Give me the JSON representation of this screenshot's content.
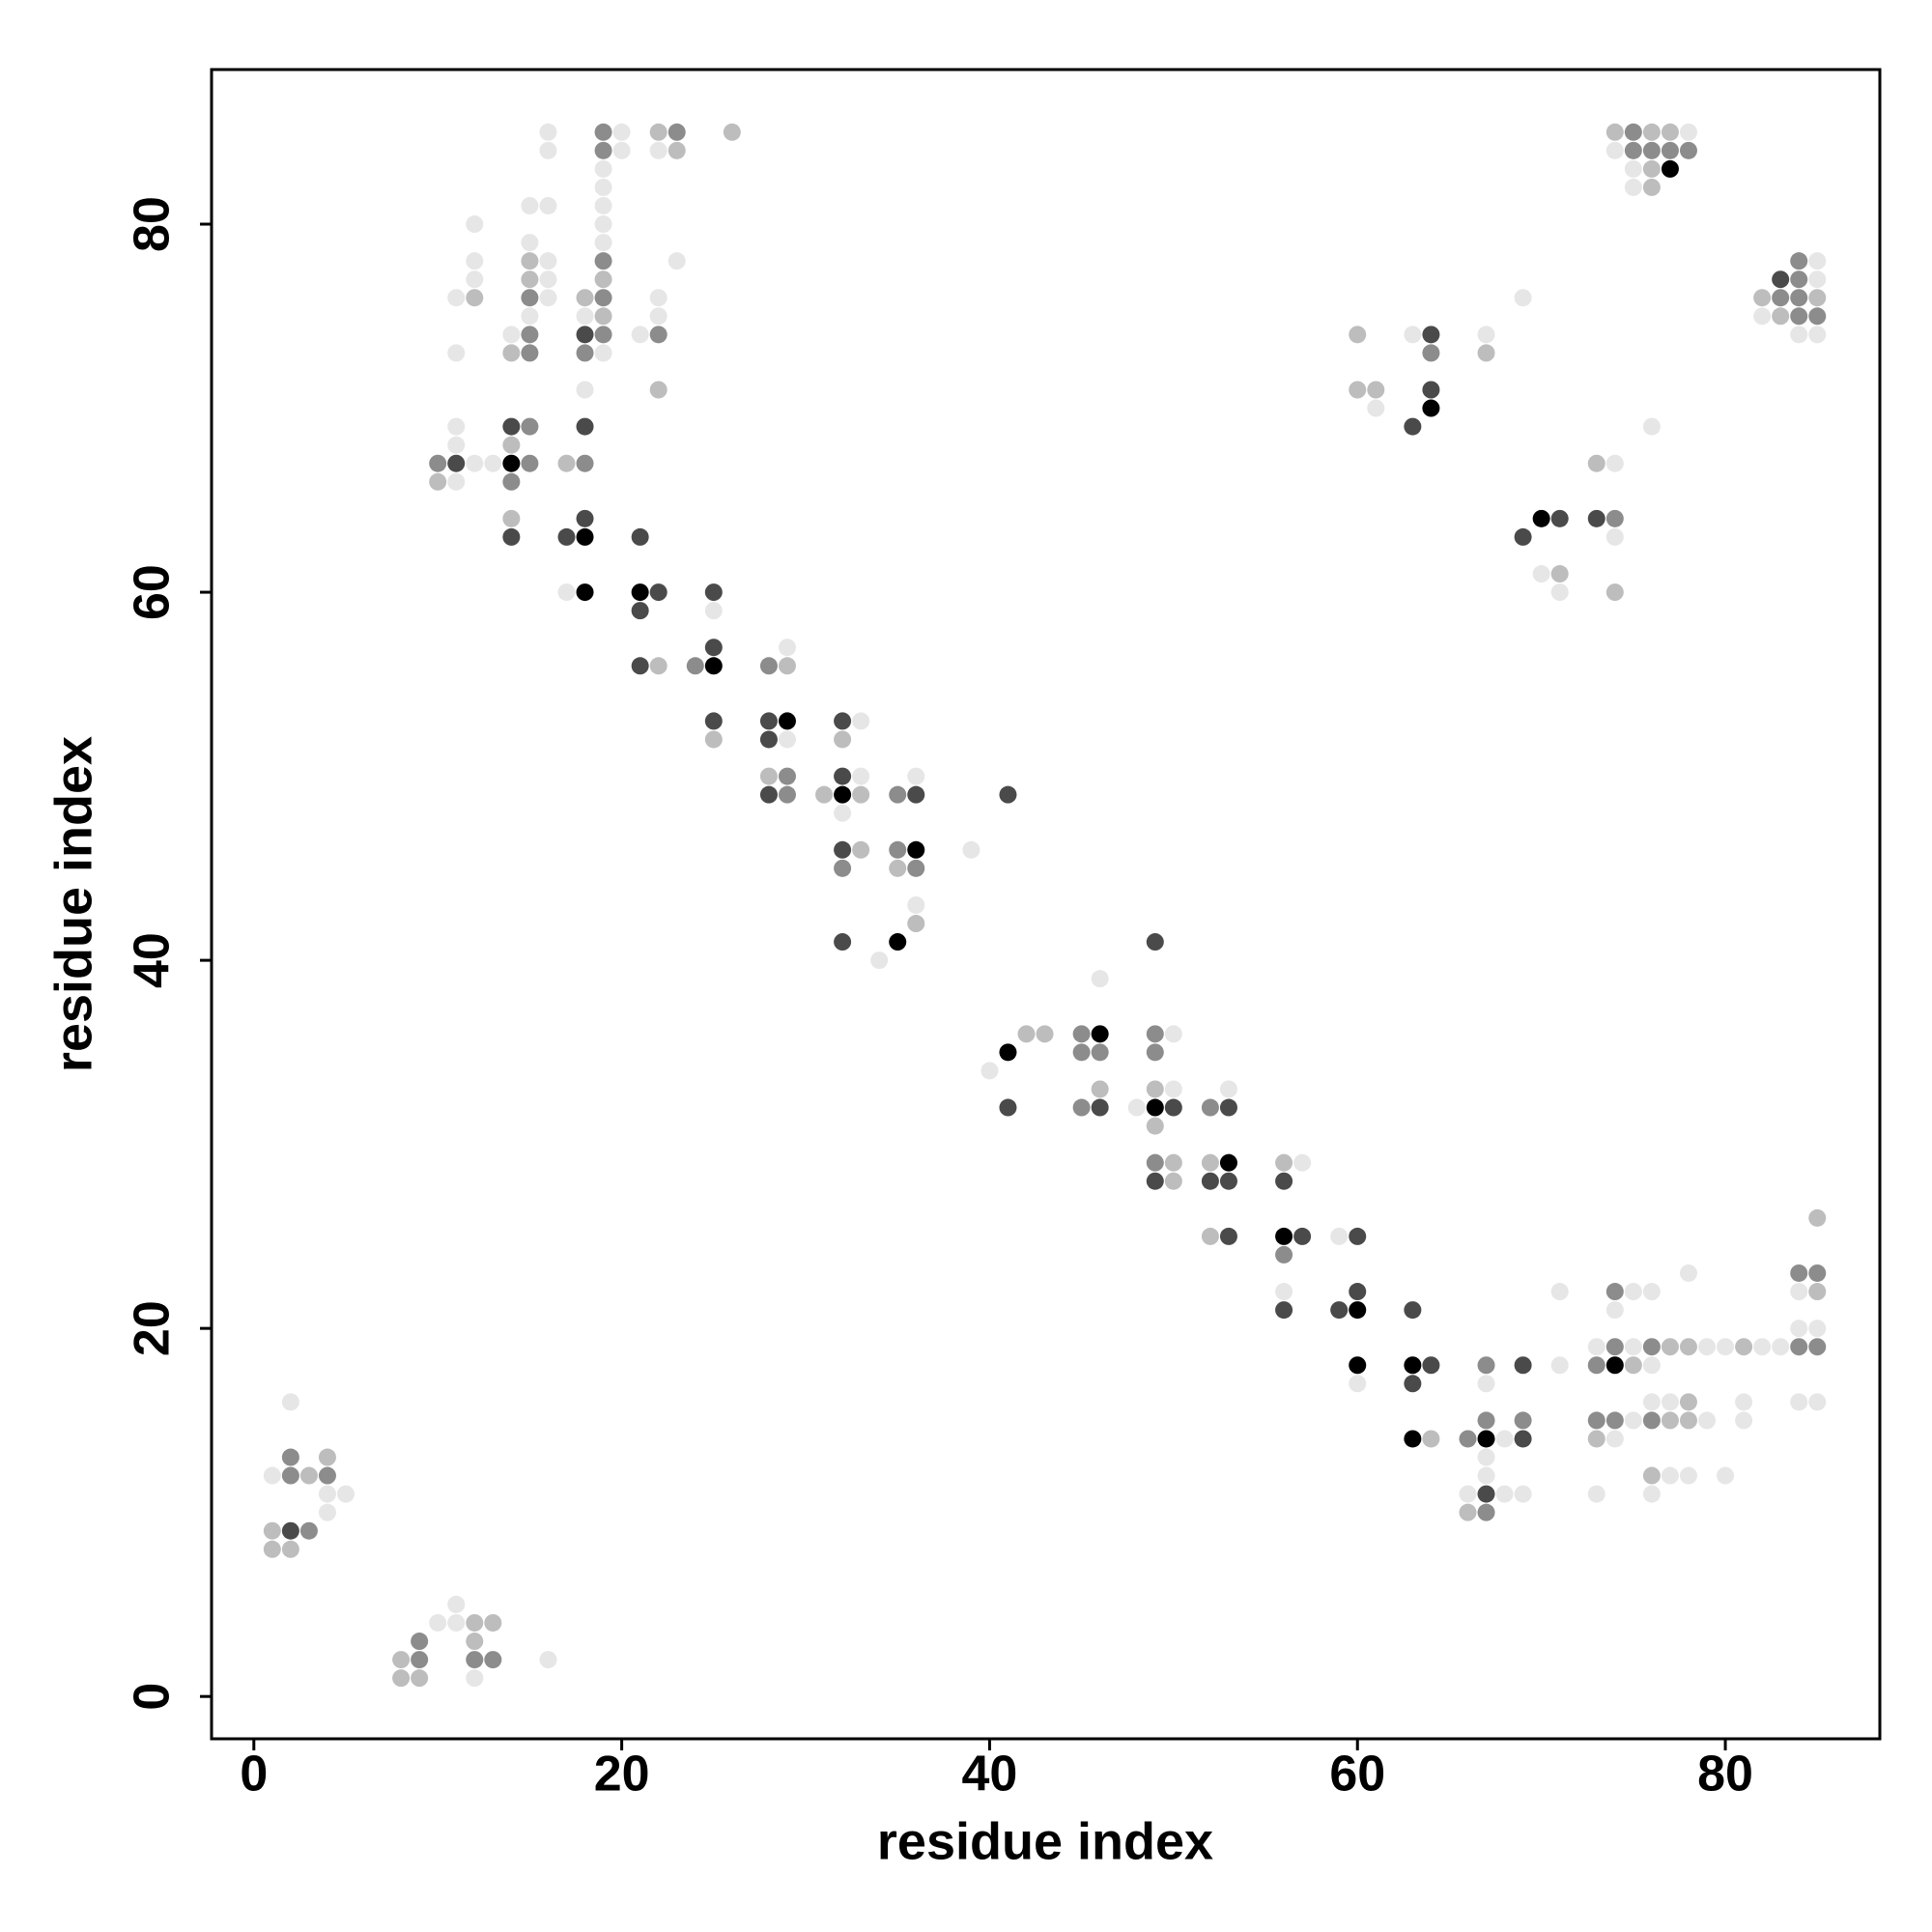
{
  "chart_data": {
    "type": "scatter",
    "xlabel": "residue index",
    "ylabel": "residue index",
    "xlim": [
      -2.3,
      88.4
    ],
    "ylim": [
      -2.3,
      88.4
    ],
    "xticks": [
      0,
      20,
      40,
      60,
      80
    ],
    "yticks": [
      0,
      20,
      40,
      60,
      80
    ],
    "grid": false,
    "series": [
      {
        "color": "#000000",
        "x": [
          14,
          18,
          18,
          21,
          25,
          29,
          32,
          36,
          35,
          46,
          41,
          49,
          53,
          56,
          60,
          60,
          63,
          74,
          63,
          67,
          77,
          64,
          70
        ],
        "y": [
          67,
          63,
          60,
          60,
          56,
          53,
          49,
          46,
          41,
          36,
          35,
          32,
          29,
          25,
          21,
          18,
          18,
          18,
          14,
          14,
          83,
          70,
          64
        ]
      },
      {
        "color": "#4a4a4a",
        "x": [
          2,
          14,
          18,
          18,
          11,
          18,
          14,
          17,
          21,
          22,
          25,
          21,
          25,
          21,
          25,
          28,
          32,
          28,
          32,
          28,
          36,
          41,
          32,
          32,
          49,
          41,
          46,
          50,
          53,
          49,
          52,
          53,
          56,
          53,
          57,
          60,
          60,
          56,
          59,
          63,
          64,
          69,
          63,
          69,
          67,
          83,
          64,
          64,
          63,
          71,
          73,
          69
        ],
        "y": [
          9,
          69,
          74,
          69,
          67,
          64,
          63,
          63,
          63,
          60,
          60,
          59,
          57,
          56,
          53,
          53,
          53,
          52,
          50,
          49,
          49,
          49,
          46,
          41,
          41,
          32,
          32,
          32,
          32,
          28,
          28,
          28,
          28,
          25,
          25,
          25,
          22,
          21,
          21,
          21,
          18,
          18,
          17,
          14,
          11,
          77,
          74,
          71,
          69,
          64,
          64,
          63
        ]
      },
      {
        "color": "#8c8c8c",
        "x": [
          2,
          2,
          4,
          3,
          9,
          9,
          12,
          13,
          19,
          23,
          19,
          19,
          15,
          19,
          15,
          19,
          22,
          15,
          18,
          15,
          10,
          15,
          18,
          14,
          24,
          28,
          29,
          29,
          35,
          35,
          32,
          36,
          45,
          49,
          45,
          46,
          49,
          45,
          52,
          49,
          56,
          74,
          84,
          85,
          74,
          76,
          84,
          85,
          67,
          73,
          67,
          69,
          73,
          74,
          76,
          66,
          67,
          75,
          75,
          76,
          77,
          78,
          84,
          84,
          83,
          84,
          84,
          85,
          64,
          74
        ],
        "y": [
          13,
          12,
          12,
          9,
          3,
          2,
          2,
          2,
          85,
          85,
          84,
          78,
          76,
          76,
          74,
          74,
          74,
          73,
          73,
          69,
          67,
          67,
          67,
          66,
          56,
          56,
          50,
          49,
          49,
          46,
          45,
          45,
          36,
          36,
          35,
          35,
          35,
          32,
          32,
          29,
          24,
          22,
          23,
          23,
          19,
          19,
          19,
          19,
          18,
          18,
          15,
          15,
          15,
          15,
          15,
          14,
          10,
          85,
          84,
          84,
          84,
          84,
          78,
          77,
          76,
          76,
          75,
          75,
          73,
          64
        ]
      },
      {
        "color": "#bdbdbd",
        "x": [
          4,
          3,
          1,
          1,
          2,
          12,
          13,
          12,
          8,
          8,
          9,
          26,
          22,
          23,
          15,
          15,
          19,
          12,
          18,
          19,
          14,
          22,
          14,
          17,
          10,
          14,
          22,
          29,
          25,
          32,
          28,
          31,
          33,
          33,
          35,
          36,
          42,
          43,
          46,
          49,
          49,
          50,
          52,
          56,
          50,
          52,
          85,
          85,
          77,
          78,
          81,
          75,
          78,
          77,
          78,
          64,
          73,
          76,
          66,
          74,
          76,
          77,
          76,
          76,
          82,
          85,
          83,
          60,
          67,
          60,
          61,
          73,
          71,
          74
        ],
        "y": [
          13,
          12,
          9,
          8,
          8,
          4,
          4,
          3,
          2,
          1,
          1,
          85,
          85,
          84,
          78,
          77,
          77,
          76,
          76,
          75,
          73,
          71,
          68,
          67,
          66,
          64,
          56,
          56,
          52,
          52,
          50,
          49,
          49,
          46,
          45,
          42,
          36,
          36,
          33,
          33,
          31,
          29,
          29,
          29,
          28,
          25,
          22,
          26,
          19,
          19,
          19,
          18,
          16,
          15,
          15,
          14,
          14,
          12,
          10,
          85,
          85,
          85,
          83,
          82,
          76,
          76,
          75,
          74,
          73,
          71,
          71,
          67,
          61,
          60
        ]
      },
      {
        "color": "#e6e6e6",
        "x": [
          2,
          1,
          4,
          5,
          4,
          11,
          10,
          11,
          16,
          12,
          16,
          20,
          16,
          20,
          22,
          19,
          19,
          19,
          19,
          19,
          15,
          16,
          12,
          15,
          12,
          16,
          23,
          12,
          16,
          11,
          16,
          22,
          15,
          18,
          22,
          14,
          21,
          11,
          19,
          18,
          11,
          11,
          12,
          13,
          11,
          17,
          25,
          29,
          33,
          29,
          33,
          36,
          32,
          39,
          36,
          34,
          46,
          50,
          40,
          50,
          53,
          48,
          57,
          59,
          56,
          71,
          75,
          76,
          84,
          78,
          74,
          84,
          85,
          73,
          75,
          79,
          80,
          82,
          83,
          71,
          76,
          60,
          67,
          76,
          77,
          81,
          84,
          85,
          75,
          79,
          81,
          68,
          74,
          67,
          67,
          77,
          78,
          80,
          66,
          68,
          69,
          73,
          76,
          78,
          74,
          75,
          75,
          85,
          85,
          69,
          82,
          63,
          67,
          84,
          85,
          61,
          76,
          74,
          74,
          70,
          71
        ],
        "y": [
          16,
          12,
          11,
          11,
          10,
          5,
          4,
          4,
          2,
          1,
          85,
          85,
          84,
          84,
          84,
          83,
          82,
          81,
          80,
          79,
          81,
          81,
          80,
          79,
          78,
          78,
          78,
          77,
          77,
          76,
          76,
          76,
          75,
          75,
          75,
          74,
          74,
          73,
          73,
          71,
          69,
          68,
          67,
          67,
          66,
          60,
          59,
          57,
          53,
          52,
          50,
          50,
          48,
          46,
          43,
          40,
          39,
          36,
          34,
          33,
          33,
          32,
          29,
          25,
          22,
          22,
          22,
          22,
          22,
          23,
          21,
          20,
          20,
          19,
          19,
          19,
          19,
          19,
          19,
          18,
          18,
          17,
          17,
          16,
          16,
          16,
          16,
          16,
          15,
          15,
          15,
          14,
          14,
          13,
          12,
          12,
          12,
          12,
          11,
          11,
          11,
          11,
          11,
          85,
          84,
          83,
          82,
          78,
          77,
          76,
          75,
          74,
          74,
          74,
          74,
          70,
          69,
          67,
          63,
          61,
          60
        ]
      }
    ]
  }
}
